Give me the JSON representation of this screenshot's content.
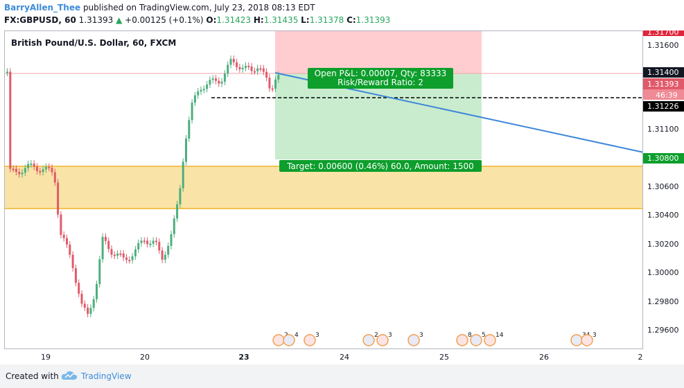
{
  "header": {
    "author": "BarryAllen_Thee",
    "published": "published on TradingView.com, July 23, 2018 08:13 EDT",
    "symbol": "FX:GBPUSD, 60",
    "last": "1.31393",
    "change": "+0.00125 (+0.1%)",
    "open_label": "O:",
    "open": "1.31423",
    "high_label": "H:",
    "high": "1.31435",
    "low_label": "L:",
    "low": "1.31378",
    "close_label": "C:",
    "close": "1.31393"
  },
  "chart": {
    "title": "British Pound/U.S. Dollar, 60, FXCM",
    "position": {
      "pnl_label": "Open P&L: 0.00007, Qty: 83333",
      "rr_label": "Risk/Reward Ratio: 2",
      "target_label": "Target: 0.00600 (0.46%) 60.0, Amount: 1500"
    },
    "colors": {
      "up": "#4caf7d",
      "down": "#e05a6a",
      "zone_fill": "#f8d98a",
      "zone_line": "#f0b429",
      "risk_fill": "#ffcdd0",
      "reward_fill": "#c9ecce",
      "trend": "#3d86d8",
      "label_green": "#0d9e2c"
    },
    "events": [
      "2",
      "4",
      "3",
      "2",
      "3",
      "3",
      "8",
      "5",
      "14",
      "34",
      "3"
    ]
  },
  "price_axis": {
    "ticks": [
      "1.31600",
      "1.31400",
      "1.31100",
      "1.30600",
      "1.30400",
      "1.30200",
      "1.30000",
      "1.29800",
      "1.29600"
    ],
    "labels": {
      "stop": "1.31700",
      "entry": "1.31400",
      "last": "1.31393",
      "countdown": "46:39",
      "dashed": "1.31226",
      "target": "1.30800"
    }
  },
  "time_axis": {
    "ticks": [
      "19",
      "20",
      "23",
      "24",
      "25",
      "26",
      "2"
    ]
  },
  "footer": {
    "created": "Created with",
    "brand": "TradingView"
  }
}
